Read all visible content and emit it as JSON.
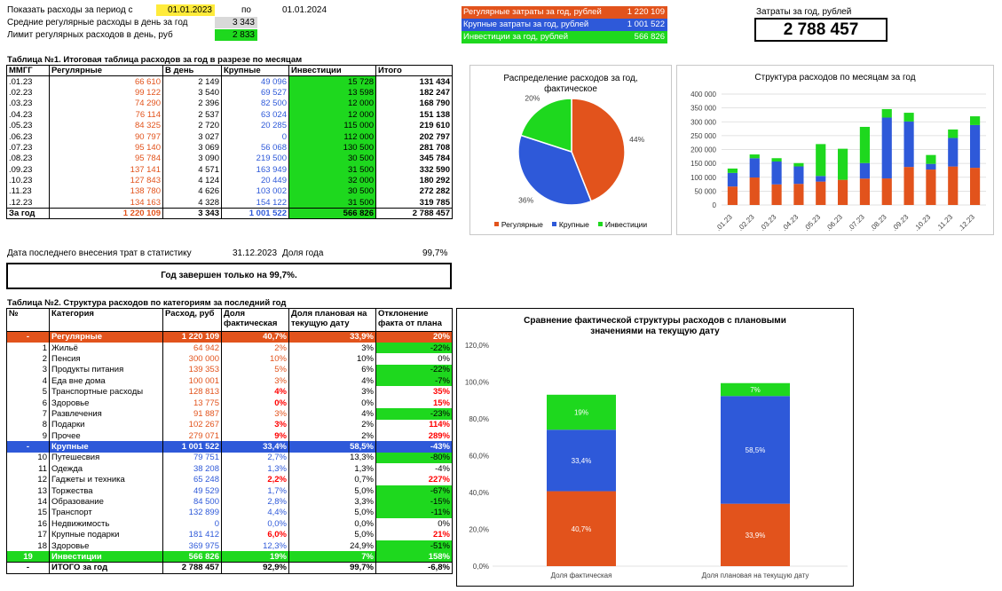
{
  "header": {
    "period_label": "Показать расходы за период с",
    "period_from": "01.01.2023",
    "period_to_label": "по",
    "period_to": "01.01.2024",
    "avg_label": "Средние регулярные расходы в день за год",
    "avg_value": "3 343",
    "limit_label": "Лимит регулярных расходов в день, руб",
    "limit_value": "2 833"
  },
  "summary_box": {
    "regular_label": "Регулярные затраты за год, рублей",
    "regular_value": "1 220 109",
    "big_label": "Крупные затраты за год, рублей",
    "big_value": "1 001 522",
    "invest_label": "Инвестиции за год, рублей",
    "invest_value": "566 826"
  },
  "total": {
    "label": "Затраты за год, рублей",
    "value": "2 788 457"
  },
  "table1": {
    "title": "Таблица №1. Итоговая таблица расходов за год в разрезе по месяцам",
    "headers": [
      "ММГГ",
      "Регулярные",
      "В день",
      "Крупные",
      "Инвестиции",
      "Итого"
    ],
    "rows": [
      [
        ".01.23",
        "66 610",
        "2 149",
        "49 096",
        "15 728",
        "131 434"
      ],
      [
        ".02.23",
        "99 122",
        "3 540",
        "69 527",
        "13 598",
        "182 247"
      ],
      [
        ".03.23",
        "74 290",
        "2 396",
        "82 500",
        "12 000",
        "168 790"
      ],
      [
        ".04.23",
        "76 114",
        "2 537",
        "63 024",
        "12 000",
        "151 138"
      ],
      [
        ".05.23",
        "84 325",
        "2 720",
        "20 285",
        "115 000",
        "219 610"
      ],
      [
        ".06.23",
        "90 797",
        "3 027",
        "0",
        "112 000",
        "202 797"
      ],
      [
        ".07.23",
        "95 140",
        "3 069",
        "56 068",
        "130 500",
        "281 708"
      ],
      [
        ".08.23",
        "95 784",
        "3 090",
        "219 500",
        "30 500",
        "345 784"
      ],
      [
        ".09.23",
        "137 141",
        "4 571",
        "163 949",
        "31 500",
        "332 590"
      ],
      [
        ".10.23",
        "127 843",
        "4 124",
        "20 449",
        "32 000",
        "180 292"
      ],
      [
        ".11.23",
        "138 780",
        "4 626",
        "103 002",
        "30 500",
        "272 282"
      ],
      [
        ".12.23",
        "134 163",
        "4 328",
        "154 122",
        "31 500",
        "319 785"
      ]
    ],
    "total_row": [
      "За год",
      "1 220 109",
      "3 343",
      "1 001 522",
      "566 826",
      "2 788 457"
    ]
  },
  "stats": {
    "last_entry_label": "Дата последнего внесения трат в статистику",
    "last_entry_date": "31.12.2023",
    "share_label": "Доля года",
    "share_value": "99,7%",
    "completion_text": "Год завершен только на 99,7%."
  },
  "table2": {
    "title": "Таблица №2. Структура расходов по категориям за последний год",
    "headers": [
      "№",
      "Категория",
      "Расход, руб",
      "Доля фактическая",
      "Доля плановая на текущую дату",
      "Отклонение факта от плана"
    ],
    "regular_row": [
      "-",
      "Регулярные",
      "1 220 109",
      "40,7%",
      "33,9%",
      "20%"
    ],
    "regular_items": [
      [
        "1",
        "Жильё",
        "64 942",
        "2%",
        "3%",
        "-22%",
        "g"
      ],
      [
        "2",
        "Пенсия",
        "300 000",
        "10%",
        "10%",
        "0%",
        ""
      ],
      [
        "3",
        "Продукты питания",
        "139 353",
        "5%",
        "6%",
        "-22%",
        "g"
      ],
      [
        "4",
        "Еда вне дома",
        "100 001",
        "3%",
        "4%",
        "-7%",
        "g"
      ],
      [
        "5",
        "Транспортные расходы",
        "128 813",
        "4%",
        "3%",
        "35%",
        "r"
      ],
      [
        "6",
        "Здоровье",
        "13 775",
        "0%",
        "0%",
        "15%",
        "r"
      ],
      [
        "7",
        "Развлечения",
        "91 887",
        "3%",
        "4%",
        "-23%",
        "g"
      ],
      [
        "8",
        "Подарки",
        "102 267",
        "3%",
        "2%",
        "114%",
        "r"
      ],
      [
        "9",
        "Прочее",
        "279 071",
        "9%",
        "2%",
        "289%",
        "r"
      ]
    ],
    "big_row": [
      "-",
      "Крупные",
      "1 001 522",
      "33,4%",
      "58,5%",
      "-43%"
    ],
    "big_items": [
      [
        "10",
        "Путешесвия",
        "79 751",
        "2,7%",
        "13,3%",
        "-80%",
        "g"
      ],
      [
        "11",
        "Одежда",
        "38 208",
        "1,3%",
        "1,3%",
        "-4%",
        ""
      ],
      [
        "12",
        "Гаджеты и техника",
        "65 248",
        "2,2%",
        "0,7%",
        "227%",
        "r"
      ],
      [
        "13",
        "Торжества",
        "49 529",
        "1,7%",
        "5,0%",
        "-67%",
        "g"
      ],
      [
        "14",
        "Образование",
        "84 500",
        "2,8%",
        "3,3%",
        "-15%",
        "g"
      ],
      [
        "15",
        "Транспорт",
        "132 899",
        "4,4%",
        "5,0%",
        "-11%",
        "g"
      ],
      [
        "16",
        "Недвижимость",
        "0",
        "0,0%",
        "0,0%",
        "0%",
        ""
      ],
      [
        "17",
        "Крупные подарки",
        "181 412",
        "6,0%",
        "5,0%",
        "21%",
        "r"
      ],
      [
        "18",
        "Здоровье",
        "369 975",
        "12,3%",
        "24,9%",
        "-51%",
        "g"
      ]
    ],
    "invest_row": [
      "19",
      "Инвестиции",
      "566 826",
      "19%",
      "7%",
      "158%"
    ],
    "total_row": [
      "-",
      "ИТОГО за год",
      "2 788 457",
      "92,9%",
      "99,7%",
      "-6,8%"
    ]
  },
  "chart_data": [
    {
      "type": "pie",
      "title": "Распределение расходов за год, фактическое",
      "categories": [
        "Регулярные",
        "Крупные",
        "Инвестиции"
      ],
      "values": [
        44,
        36,
        20
      ],
      "labels": [
        "44%",
        "36%",
        "20%"
      ],
      "colors": [
        "#e2531c",
        "#2e59d9",
        "#1ed81e"
      ],
      "legend": "bottom"
    },
    {
      "type": "bar",
      "stacked": true,
      "title": "Структура расходов по месяцам за год",
      "categories": [
        ".01.23",
        ".02.23",
        ".03.23",
        ".04.23",
        ".05.23",
        ".06.23",
        ".07.23",
        ".08.23",
        ".09.23",
        ".10.23",
        ".11.23",
        ".12.23"
      ],
      "series": [
        {
          "name": "Регулярные",
          "color": "#e2531c",
          "values": [
            66610,
            99122,
            74290,
            76114,
            84325,
            90797,
            95140,
            95784,
            137141,
            127843,
            138780,
            134163
          ]
        },
        {
          "name": "Крупные",
          "color": "#2e59d9",
          "values": [
            49096,
            69527,
            82500,
            63024,
            20285,
            0,
            56068,
            219500,
            163949,
            20449,
            103002,
            154122
          ]
        },
        {
          "name": "Инвестиции",
          "color": "#1ed81e",
          "values": [
            15728,
            13598,
            12000,
            12000,
            115000,
            112000,
            130500,
            30500,
            31500,
            32000,
            30500,
            31500
          ]
        }
      ],
      "yticks": [
        "0",
        "50 000",
        "100 000",
        "150 000",
        "200 000",
        "250 000",
        "300 000",
        "350 000",
        "400 000"
      ],
      "ylim": [
        0,
        400000
      ],
      "grid": true
    },
    {
      "type": "bar",
      "stacked": true,
      "title": "Сравнение фактической структуры расходов с плановыми значениями на текущую дату",
      "categories": [
        "Доля фактическая",
        "Доля плановая на текущую дату"
      ],
      "series": [
        {
          "name": "Регулярные",
          "color": "#e2531c",
          "values": [
            40.7,
            33.9
          ],
          "labels": [
            "40,7%",
            "33,9%"
          ]
        },
        {
          "name": "Крупные",
          "color": "#2e59d9",
          "values": [
            33.4,
            58.5
          ],
          "labels": [
            "33,4%",
            "58,5%"
          ]
        },
        {
          "name": "Инвестиции",
          "color": "#1ed81e",
          "values": [
            19,
            7
          ],
          "labels": [
            "19%",
            "7%"
          ]
        }
      ],
      "yticks": [
        "0,0%",
        "20,0%",
        "40,0%",
        "60,0%",
        "80,0%",
        "100,0%",
        "120,0%"
      ],
      "ylim": [
        0,
        120
      ],
      "grid": false
    }
  ]
}
